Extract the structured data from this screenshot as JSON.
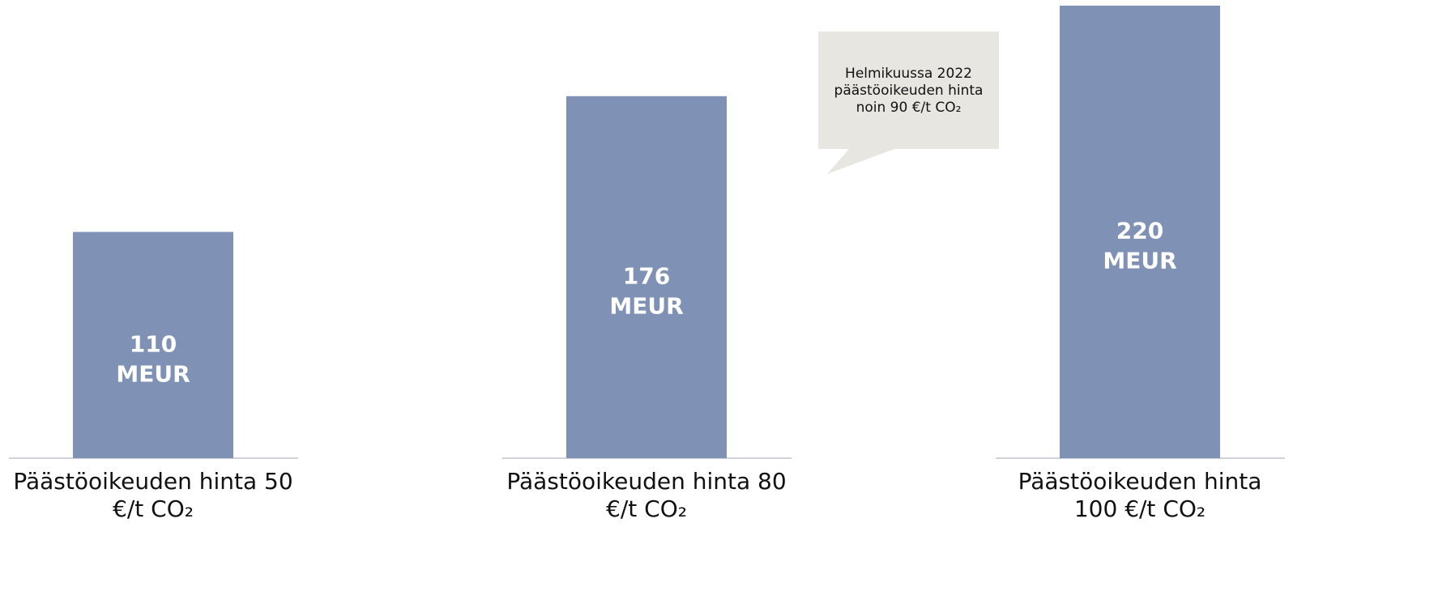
{
  "chart_data": {
    "type": "bar",
    "categories": [
      "Päästöoikeuden hinta 50 €/t CO₂",
      "Päästöoikeuden hinta 80 €/t CO₂",
      "Päästöoikeuden hinta 100 €/t CO₂"
    ],
    "values": [
      110,
      176,
      220
    ],
    "value_labels": [
      "110 MEUR",
      "176 MEUR",
      "220 MEUR"
    ],
    "color": "#7f91b5",
    "ylim": [
      0,
      220
    ],
    "annotation": "Helmikuussa 2022 päästöoikeuden hinta noin 90 €/t CO₂"
  }
}
